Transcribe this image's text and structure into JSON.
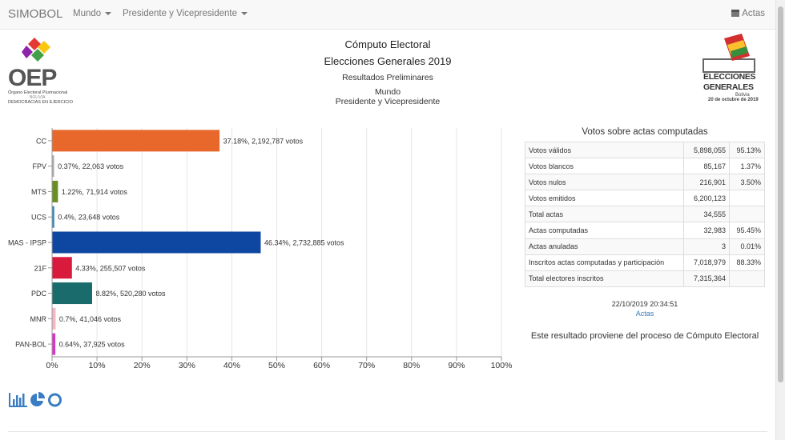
{
  "nav": {
    "brand": "SIMOBOL",
    "menu1": "Mundo",
    "menu2": "Presidente y Vicepresidente",
    "actas": "Actas"
  },
  "header": {
    "title": "Cómputo Electoral",
    "subtitle": "Elecciones Generales 2019",
    "results_type": "Resultados Preliminares",
    "scope": "Mundo",
    "office": "Presidente y Vicepresidente"
  },
  "oep_logo": {
    "acronym": "OEP",
    "line1": "Órgano Electoral Plurinacional",
    "line2": "BOLIVIA",
    "line3": "DEMOCRACIAS EN EJERCICIO"
  },
  "eg_logo": {
    "line1": "ELECCIONES",
    "line2": "GENERALES",
    "line3": "Bolivia",
    "line4": "20 de octubre de 2019"
  },
  "chart_data": {
    "type": "bar",
    "orientation": "horizontal",
    "categories": [
      "CC",
      "FPV",
      "MTS",
      "UCS",
      "MAS - IPSP",
      "21F",
      "PDC",
      "MNR",
      "PAN-BOL"
    ],
    "values": [
      37.18,
      0.37,
      1.22,
      0.4,
      46.34,
      4.33,
      8.82,
      0.7,
      0.64
    ],
    "labels": [
      "37.18%,  2,192,787 votos",
      "0.37%,  22,063 votos",
      "1.22%,  71,914 votos",
      "0.4%,  23,648 votos",
      "46.34%,  2,732,885 votos",
      "4.33%,  255,507 votos",
      "8.82%,  520,280 votos",
      "0.7%,  41,046 votos",
      "0.64%,  37,925 votos"
    ],
    "colors": [
      "#e8672a",
      "#b0b0b0",
      "#6b8e23",
      "#2e8bc0",
      "#0e47a1",
      "#d81b3c",
      "#1a6b6b",
      "#f4b6c2",
      "#d936c8"
    ],
    "xlim": [
      0,
      100
    ],
    "xticks": [
      "0%",
      "10%",
      "20%",
      "30%",
      "40%",
      "50%",
      "60%",
      "70%",
      "80%",
      "90%",
      "100%"
    ],
    "grid": true
  },
  "stats": {
    "title": "Votos sobre actas computadas",
    "rows": [
      {
        "label": "Votos válidos",
        "value": "5,898,055",
        "pct": "95.13%"
      },
      {
        "label": "Votos blancos",
        "value": "85,167",
        "pct": "1.37%"
      },
      {
        "label": "Votos nulos",
        "value": "216,901",
        "pct": "3.50%"
      },
      {
        "label": "Votos emitidos",
        "value": "6,200,123",
        "pct": ""
      },
      {
        "label": "Total actas",
        "value": "34,555",
        "pct": ""
      },
      {
        "label": "Actas computadas",
        "value": "32,983",
        "pct": "95.45%"
      },
      {
        "label": "Actas anuladas",
        "value": "3",
        "pct": "0.01%"
      },
      {
        "label": "Inscritos actas computadas y participación",
        "value": "7,018,979",
        "pct": "88.33%"
      },
      {
        "label": "Total electores inscritos",
        "value": "7,315,364",
        "pct": ""
      }
    ],
    "timestamp": "22/10/2019 20:34:51",
    "actas_link": "Actas",
    "note": "Este resultado proviene del proceso de Cómputo Electoral"
  },
  "chart_type_icons": [
    "bar-chart-icon",
    "pie-chart-icon",
    "donut-chart-icon"
  ],
  "colors": {
    "accent_link": "#337ab7",
    "icon_blue": "#3a7dc2"
  }
}
